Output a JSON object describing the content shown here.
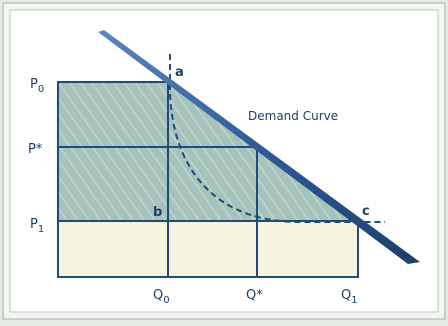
{
  "colors": {
    "background": "#e6ebe3",
    "panel": "#ffffff",
    "line": "#1f4a7a",
    "fill_cream": "#f6f3df",
    "fill_teal": "#a9c4bd"
  },
  "labels": {
    "demand_curve": "Demand Curve",
    "point_a": "a",
    "point_b": "b",
    "point_c": "c",
    "p0_main": "P",
    "p0_sub": "0",
    "pstar": "P*",
    "p1_main": "P",
    "p1_sub": "1",
    "q0_main": "Q",
    "q0_sub": "0",
    "qstar": "Q*",
    "q1_main": "Q",
    "q1_sub": "1"
  }
}
